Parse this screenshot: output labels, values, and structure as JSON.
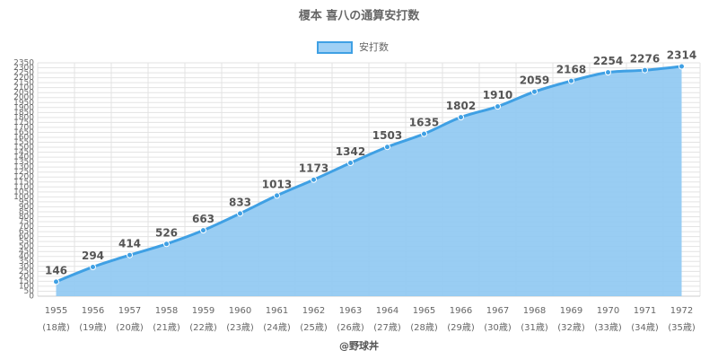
{
  "chart_data": {
    "type": "area",
    "title": "榎本 喜八の通算安打数",
    "categories": [
      "1955",
      "1956",
      "1957",
      "1958",
      "1959",
      "1960",
      "1961",
      "1962",
      "1963",
      "1964",
      "1965",
      "1966",
      "1967",
      "1968",
      "1969",
      "1970",
      "1971",
      "1972"
    ],
    "category_sublabels": [
      "(18歳)",
      "(19歳)",
      "(20歳)",
      "(21歳)",
      "(22歳)",
      "(23歳)",
      "(24歳)",
      "(25歳)",
      "(26歳)",
      "(27歳)",
      "(28歳)",
      "(29歳)",
      "(30歳)",
      "(31歳)",
      "(32歳)",
      "(33歳)",
      "(34歳)",
      "(35歳)"
    ],
    "series": [
      {
        "name": "安打数",
        "color": "#3fa0e4",
        "values": [
          146,
          294,
          414,
          526,
          663,
          833,
          1013,
          1173,
          1342,
          1503,
          1635,
          1802,
          1910,
          2059,
          2168,
          2254,
          2276,
          2314
        ]
      }
    ],
    "ylim": [
      0,
      2350
    ],
    "yticks": [
      0,
      50,
      100,
      150,
      200,
      250,
      300,
      350,
      400,
      450,
      500,
      550,
      600,
      650,
      700,
      750,
      800,
      850,
      900,
      950,
      1000,
      1050,
      1100,
      1150,
      1200,
      1250,
      1300,
      1350,
      1400,
      1450,
      1500,
      1550,
      1600,
      1650,
      1700,
      1750,
      1800,
      1850,
      1900,
      1950,
      2000,
      2050,
      2100,
      2150,
      2200,
      2250,
      2300,
      2350
    ],
    "grid": true,
    "legend": "top",
    "credit": "@野球丼"
  }
}
